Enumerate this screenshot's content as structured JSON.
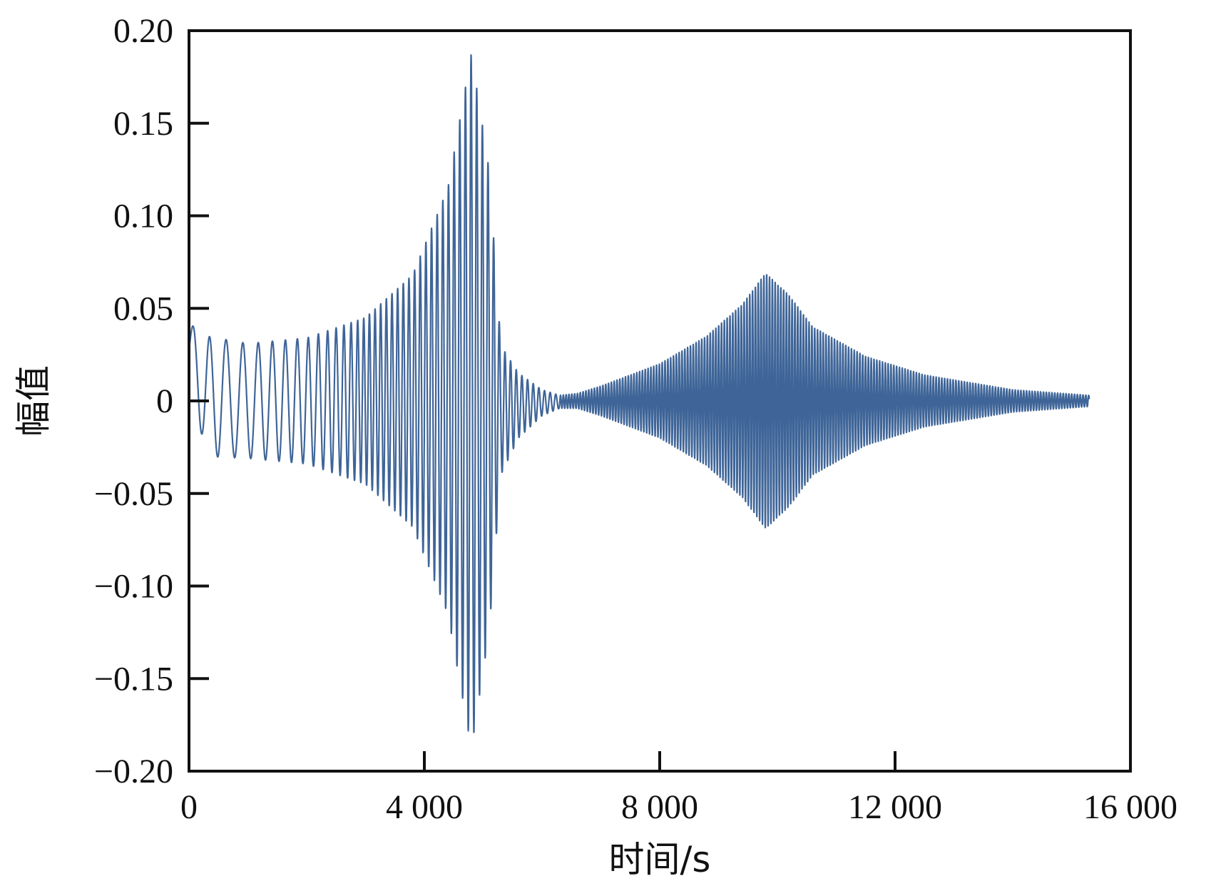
{
  "chart_data": {
    "type": "line",
    "title": "",
    "xlabel": "时间/s",
    "ylabel": "幅值",
    "xlim": [
      0,
      16000
    ],
    "ylim": [
      -0.2,
      0.2
    ],
    "grid": false,
    "legend": "none",
    "x_ticks": [
      0,
      4000,
      8000,
      12000,
      16000
    ],
    "x_tick_labels": [
      "0",
      "4 000",
      "8 000",
      "12 000",
      "16 000"
    ],
    "y_ticks": [
      0.2,
      0.15,
      0.1,
      0.05,
      0,
      -0.05,
      -0.1,
      -0.15,
      -0.2
    ],
    "y_tick_labels": [
      "0.20",
      "0.15",
      "0.10",
      "0.05",
      "0",
      "−0.05",
      "−0.10",
      "−0.15",
      "−0.20"
    ],
    "line_color": "#3f6598",
    "series": [
      {
        "envelope_x": [
          0,
          300,
          1000,
          2000,
          3000,
          3800,
          4400,
          4800,
          5100,
          5300,
          5600,
          6000,
          6300,
          6600,
          7000,
          8000,
          8800,
          9400,
          9800,
          10200,
          10600,
          11500,
          12500,
          14000,
          15300
        ],
        "envelope_upper": [
          0.042,
          0.035,
          0.031,
          0.034,
          0.045,
          0.068,
          0.115,
          0.188,
          0.125,
          0.03,
          0.015,
          0.006,
          0.003,
          0.004,
          0.008,
          0.02,
          0.035,
          0.052,
          0.069,
          0.057,
          0.04,
          0.024,
          0.014,
          0.006,
          0.003
        ],
        "envelope_lower": [
          0.012,
          -0.03,
          -0.031,
          -0.034,
          -0.045,
          -0.068,
          -0.115,
          -0.188,
          -0.125,
          -0.04,
          -0.02,
          -0.008,
          -0.004,
          -0.004,
          -0.008,
          -0.02,
          -0.035,
          -0.052,
          -0.069,
          -0.057,
          -0.04,
          -0.024,
          -0.014,
          -0.006,
          -0.003
        ]
      }
    ]
  }
}
